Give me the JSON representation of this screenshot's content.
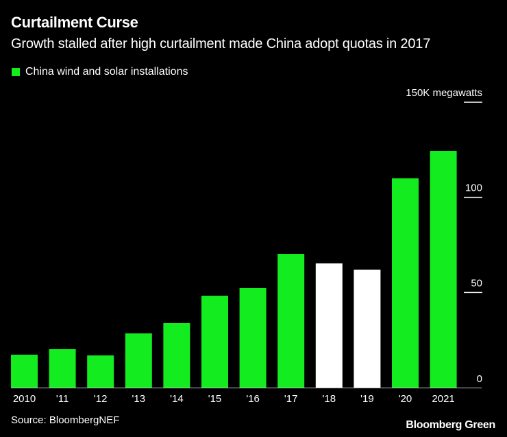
{
  "chart_data": {
    "type": "bar",
    "title": "Curtailment Curse",
    "subtitle": "Growth stalled after high curtailment made China adopt quotas in 2017",
    "legend": [
      {
        "label": "China wind and solar installations",
        "color": "#13ec1e"
      }
    ],
    "legend_position": "top-left",
    "categories": [
      "2010",
      "'11",
      "'12",
      "'13",
      "'14",
      "'15",
      "'16",
      "'17",
      "'18",
      "'19",
      "'20",
      "2021"
    ],
    "values": [
      17.3,
      20.2,
      16.9,
      28.5,
      33.9,
      48.3,
      52.3,
      70.3,
      65.3,
      62.0,
      110.0,
      124.4
    ],
    "bar_colors": [
      "#13ec1e",
      "#13ec1e",
      "#13ec1e",
      "#13ec1e",
      "#13ec1e",
      "#13ec1e",
      "#13ec1e",
      "#13ec1e",
      "#ffffff",
      "#ffffff",
      "#13ec1e",
      "#13ec1e"
    ],
    "ylim": [
      0,
      150
    ],
    "yticks": [
      0,
      50,
      100,
      150
    ],
    "ytick_labels": [
      "0",
      "50",
      "100",
      "150K  megawatts"
    ],
    "ylabel": "megawatts",
    "xlabel": "",
    "grid": false,
    "source": "Source: BloombergNEF",
    "brand": "Bloomberg Green"
  }
}
